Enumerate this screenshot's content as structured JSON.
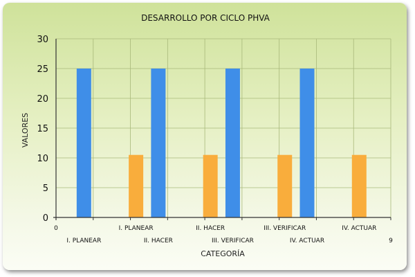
{
  "chart_data": {
    "type": "bar",
    "title": "DESARROLLO POR CICLO PHVA",
    "xlabel": "CATEGORÍA",
    "ylabel": "VALORES",
    "ylim": [
      0,
      30
    ],
    "yticks": [
      "0",
      "5",
      "10",
      "15",
      "20",
      "25",
      "30"
    ],
    "xlim": [
      0,
      9
    ],
    "x_edge_labels": [
      "0",
      "9"
    ],
    "grid": true,
    "legend": "none",
    "categories": [
      "I. PLANEAR",
      "II. HACER",
      "III. VERIFICAR",
      "IV. ACTUAR"
    ],
    "series": [
      {
        "color": "#3f8ee8",
        "x": [
          0.75,
          2.75,
          4.75,
          6.75
        ],
        "values": [
          25,
          25,
          25,
          25
        ]
      },
      {
        "color": "#f9ad3c",
        "x": [
          2.15,
          4.15,
          6.15,
          8.15
        ],
        "values": [
          10.5,
          10.5,
          10.5,
          10.5
        ]
      }
    ]
  }
}
